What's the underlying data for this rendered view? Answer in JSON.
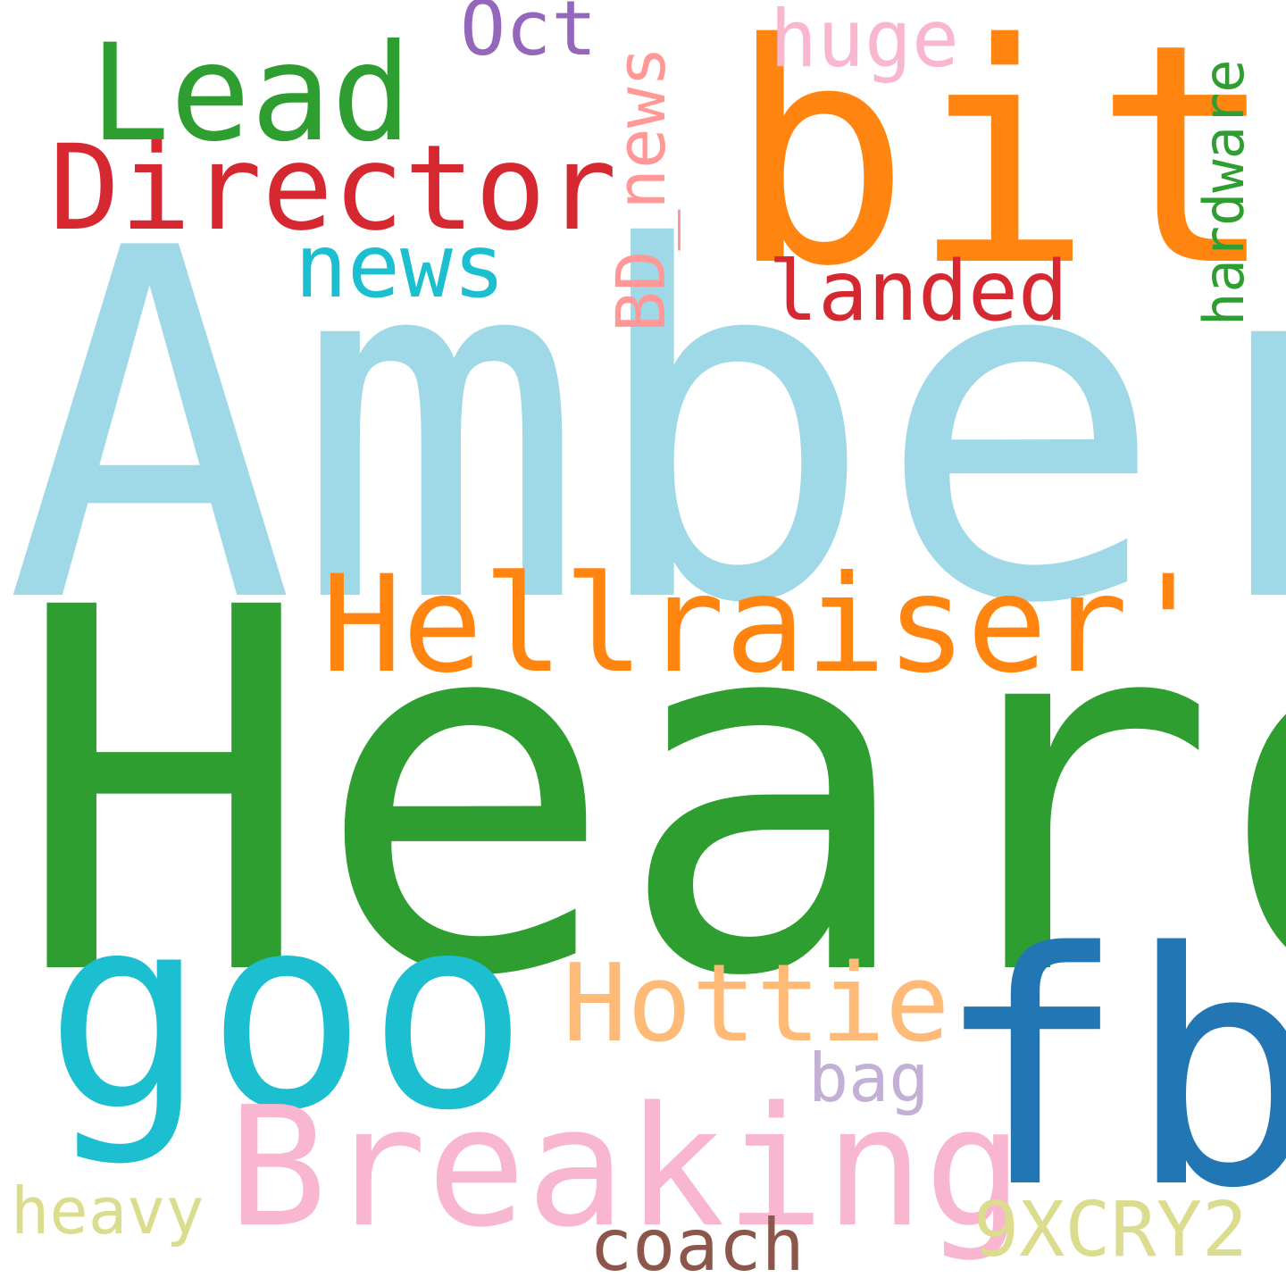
{
  "words": [
    {
      "text": "Amber",
      "color": "#9fd8e6"
    },
    {
      "text": "Heard",
      "color": "#2e9e31"
    },
    {
      "text": "bit",
      "color": "#ff8510"
    },
    {
      "text": "goo",
      "color": "#1bbfd0"
    },
    {
      "text": "fb",
      "color": "#2276b3"
    },
    {
      "text": "Breaking",
      "color": "#f8b6d0"
    },
    {
      "text": "Hellraiser'",
      "color": "#ff8510"
    },
    {
      "text": "Lead",
      "color": "#2e9e31"
    },
    {
      "text": "Director",
      "color": "#d62830"
    },
    {
      "text": "Hottie",
      "color": "#ffba78"
    },
    {
      "text": "news",
      "color": "#1bbfd0"
    },
    {
      "text": "landed",
      "color": "#d62830"
    },
    {
      "text": "Oct",
      "color": "#9467bd"
    },
    {
      "text": "huge",
      "color": "#f8b6d0"
    },
    {
      "text": "bag",
      "color": "#c5b0d5"
    },
    {
      "text": "9XCRY2",
      "color": "#dbdc8d"
    },
    {
      "text": "heavy",
      "color": "#dbdc8d"
    },
    {
      "text": "coach",
      "color": "#8c564b"
    },
    {
      "text": "BD_news",
      "color": "#ff9896"
    },
    {
      "text": "hardware",
      "color": "#2e9e31"
    }
  ]
}
